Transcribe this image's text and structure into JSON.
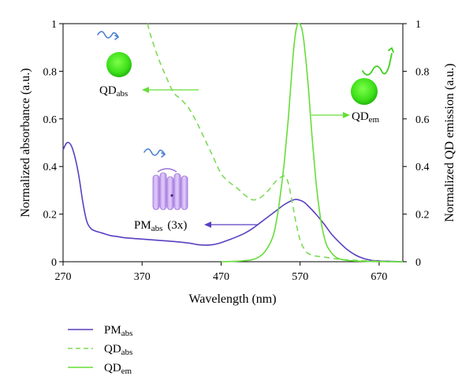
{
  "chart_data": {
    "type": "line",
    "title": "",
    "xlabel": "Wavelength (nm)",
    "ylabel_left": "Normalized absorbance (a.u.)",
    "ylabel_right": "Normalized QD emission (a.u.)",
    "xlim": [
      270,
      700
    ],
    "ylim": [
      0,
      1
    ],
    "xticks": [
      270,
      370,
      470,
      570,
      670
    ],
    "yticks": [
      0,
      0.2,
      0.4,
      0.6,
      0.8,
      1
    ],
    "ytick_labels": [
      "0",
      "0.2",
      "0.4",
      "0.6",
      "0.8",
      "1"
    ],
    "series": [
      {
        "name": "PM",
        "sub": "abs",
        "color": "#5a3fc0",
        "dash": "solid",
        "x": [
          270,
          275,
          280,
          285,
          290,
          295,
          300,
          305,
          310,
          320,
          330,
          340,
          350,
          370,
          390,
          410,
          430,
          440,
          450,
          460,
          470,
          480,
          490,
          500,
          510,
          520,
          530,
          540,
          550,
          560,
          565,
          570,
          575,
          580,
          590,
          600,
          610,
          620,
          630,
          640,
          650,
          660,
          670,
          680,
          690,
          700
        ],
        "y": [
          0.47,
          0.5,
          0.49,
          0.44,
          0.36,
          0.25,
          0.17,
          0.14,
          0.13,
          0.12,
          0.11,
          0.105,
          0.1,
          0.095,
          0.09,
          0.085,
          0.078,
          0.072,
          0.07,
          0.072,
          0.08,
          0.092,
          0.105,
          0.12,
          0.14,
          0.165,
          0.19,
          0.215,
          0.24,
          0.258,
          0.262,
          0.258,
          0.25,
          0.235,
          0.2,
          0.16,
          0.115,
          0.08,
          0.05,
          0.028,
          0.014,
          0.006,
          0.003,
          0.002,
          0.001,
          0
        ]
      },
      {
        "name": "QD",
        "sub": "abs",
        "color": "#7ed957",
        "dash": "dashed",
        "x": [
          377,
          380,
          390,
          400,
          410,
          420,
          430,
          440,
          450,
          460,
          470,
          480,
          490,
          500,
          510,
          520,
          530,
          540,
          550,
          555,
          560,
          565,
          570,
          575,
          580,
          590,
          600,
          610,
          620,
          640,
          660,
          680,
          700
        ],
        "y": [
          1.0,
          0.96,
          0.86,
          0.78,
          0.71,
          0.68,
          0.64,
          0.58,
          0.51,
          0.44,
          0.37,
          0.335,
          0.31,
          0.28,
          0.26,
          0.27,
          0.3,
          0.34,
          0.36,
          0.33,
          0.25,
          0.16,
          0.09,
          0.055,
          0.035,
          0.024,
          0.02,
          0.015,
          0.01,
          0.006,
          0.003,
          0.001,
          0
        ]
      },
      {
        "name": "QD",
        "sub": "em",
        "color": "#66dd3a",
        "dash": "solid",
        "x": [
          470,
          490,
          505,
          515,
          525,
          535,
          540,
          545,
          550,
          555,
          560,
          563,
          566,
          569,
          572,
          575,
          580,
          585,
          590,
          595,
          600,
          605,
          615,
          625,
          640,
          660,
          680,
          700
        ],
        "y": [
          0,
          0.002,
          0.006,
          0.015,
          0.04,
          0.1,
          0.17,
          0.28,
          0.42,
          0.6,
          0.82,
          0.93,
          0.99,
          1.0,
          0.98,
          0.92,
          0.75,
          0.53,
          0.34,
          0.2,
          0.11,
          0.06,
          0.02,
          0.008,
          0.003,
          0.001,
          0,
          0
        ]
      }
    ],
    "annotations": {
      "qd_abs": {
        "main": "QD",
        "sub": "abs"
      },
      "qd_em": {
        "main": "QD",
        "sub": "em"
      },
      "pm_abs": {
        "main": "PM",
        "sub": "abs",
        "suffix": "(3x)"
      }
    },
    "legend": {
      "placement": "bottom-left",
      "entries": [
        {
          "main": "PM",
          "sub": "abs",
          "color": "#5a3fc0",
          "dash": "solid"
        },
        {
          "main": "QD",
          "sub": "abs",
          "color": "#7ed957",
          "dash": "dashed"
        },
        {
          "main": "QD",
          "sub": "em",
          "color": "#66dd3a",
          "dash": "solid"
        }
      ]
    }
  }
}
